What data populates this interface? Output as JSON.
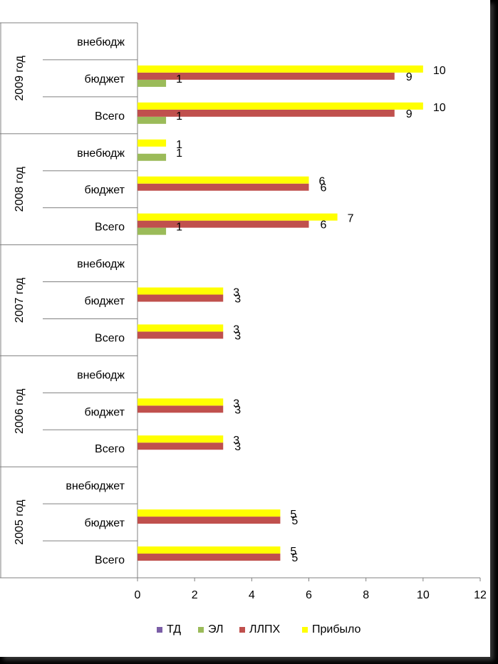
{
  "chart_data": {
    "type": "bar",
    "orientation": "horizontal",
    "groups": [
      {
        "year": "2005 год",
        "categories": [
          "Всего",
          "бюджет",
          "внебюджет"
        ]
      },
      {
        "year": "2006 год",
        "categories": [
          "Всего",
          "бюджет",
          "внебюдж"
        ]
      },
      {
        "year": "2007 год",
        "categories": [
          "Всего",
          "бюджет",
          "внебюдж"
        ]
      },
      {
        "year": "2008 год",
        "categories": [
          "Всего",
          "бюджет",
          "внебюдж"
        ]
      },
      {
        "year": "2009 год",
        "categories": [
          "Всего",
          "бюджет",
          "внебюдж"
        ]
      }
    ],
    "series": [
      {
        "name": "ТД",
        "color": "#7B5EA7",
        "values": [
          null,
          null,
          null,
          null,
          null,
          null,
          null,
          null,
          null,
          null,
          null,
          null,
          null,
          null,
          null
        ]
      },
      {
        "name": "ЭЛ",
        "color": "#9BBB59",
        "values": [
          null,
          null,
          null,
          null,
          null,
          null,
          null,
          null,
          null,
          1,
          null,
          1,
          1,
          1,
          null
        ]
      },
      {
        "name": "ЛЛПХ",
        "color": "#C0504D",
        "values": [
          5,
          5,
          null,
          3,
          3,
          null,
          3,
          3,
          null,
          6,
          6,
          null,
          9,
          9,
          null
        ]
      },
      {
        "name": "Прибыло",
        "color": "#FFFF00",
        "values": [
          5,
          5,
          null,
          3,
          3,
          null,
          3,
          3,
          null,
          7,
          6,
          1,
          10,
          10,
          null
        ]
      }
    ],
    "xlim": [
      0,
      12
    ],
    "xticks": [
      "0",
      "2",
      "4",
      "6",
      "8",
      "10",
      "12"
    ],
    "grid": false,
    "legend": "bottom"
  }
}
